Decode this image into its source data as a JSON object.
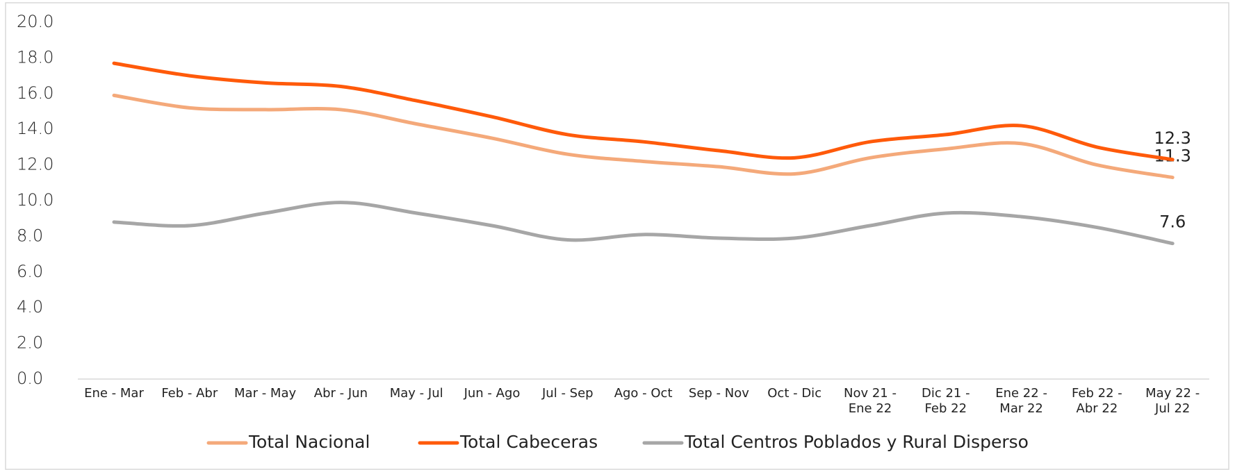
{
  "chart_data": {
    "type": "line",
    "categories": [
      "Ene - Mar",
      "Feb - Abr",
      "Mar - May",
      "Abr - Jun",
      "May - Jul",
      "Jun - Ago",
      "Jul - Sep",
      "Ago - Oct",
      "Sep - Nov",
      "Oct - Dic",
      "Nov 21 - Ene 22",
      "Dic 21 - Feb 22",
      "Ene 22 - Mar 22",
      "Feb 22 - Abr 22",
      "May 22 - Jul 22"
    ],
    "series": [
      {
        "name": "Total Nacional",
        "color": "#f4a97a",
        "values": [
          15.9,
          15.2,
          15.1,
          15.1,
          14.3,
          13.5,
          12.6,
          12.2,
          11.9,
          11.5,
          12.4,
          12.9,
          13.2,
          12.0,
          11.3
        ]
      },
      {
        "name": "Total Cabeceras",
        "color": "#ff5a0a",
        "values": [
          17.7,
          17.0,
          16.6,
          16.4,
          15.6,
          14.7,
          13.7,
          13.3,
          12.8,
          12.4,
          13.3,
          13.7,
          14.2,
          13.0,
          12.3
        ]
      },
      {
        "name": "Total Centros Poblados y Rural Disperso",
        "color": "#a6a6a6",
        "values": [
          8.8,
          8.6,
          9.3,
          9.9,
          9.3,
          8.6,
          7.8,
          8.1,
          7.9,
          7.9,
          8.6,
          9.3,
          9.1,
          8.5,
          7.6
        ]
      }
    ],
    "ylim": [
      0,
      20
    ],
    "yticks": [
      {
        "value": 0,
        "label": "0.0"
      },
      {
        "value": 2,
        "label": "2.0"
      },
      {
        "value": 4,
        "label": "4.0"
      },
      {
        "value": 6,
        "label": "6.0"
      },
      {
        "value": 8,
        "label": "8.0"
      },
      {
        "value": 10,
        "label": "10.0"
      },
      {
        "value": 12,
        "label": "12.0"
      },
      {
        "value": 14,
        "label": "14.0"
      },
      {
        "value": 16,
        "label": "16.0"
      },
      {
        "value": 18,
        "label": "18.0"
      },
      {
        "value": 20,
        "label": "20.0"
      }
    ],
    "grid": false,
    "legend": "bottom"
  }
}
